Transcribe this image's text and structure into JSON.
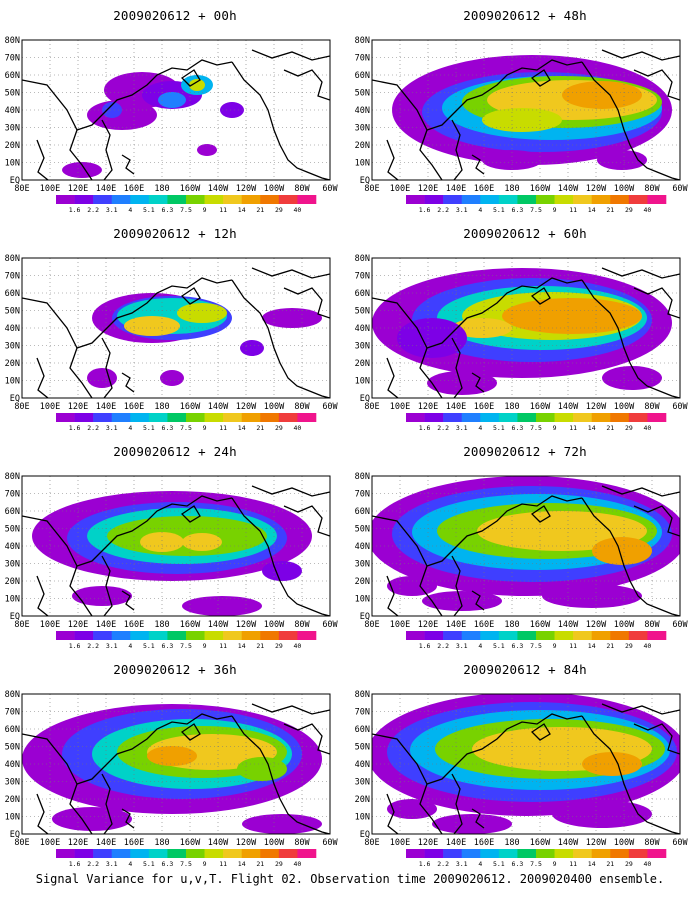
{
  "footer": "Signal Variance for u,v,T. Flight 02. Observation time 2009020612. 2009020400 ensemble.",
  "x_ticks": [
    "80E",
    "100E",
    "120E",
    "140E",
    "160E",
    "180",
    "160W",
    "140W",
    "120W",
    "100W",
    "80W",
    "60W"
  ],
  "y_ticks": [
    "EQ",
    "10N",
    "20N",
    "30N",
    "40N",
    "50N",
    "60N",
    "70N",
    "80N"
  ],
  "colorbar": {
    "labels": [
      "1.6",
      "2.2",
      "3.1",
      "4",
      "5.1",
      "6.3",
      "7.5",
      "9",
      "11",
      "14",
      "21",
      "29",
      "40"
    ],
    "colors": [
      "#9b00d2",
      "#7d00e6",
      "#3f3fff",
      "#1f7fff",
      "#00b4f0",
      "#00d2c8",
      "#00c864",
      "#78d200",
      "#c8dc00",
      "#f0c81e",
      "#f0a000",
      "#f07800",
      "#f03c3c",
      "#f0148c"
    ]
  },
  "panels": [
    {
      "title": "2009020612 + 00h"
    },
    {
      "title": "2009020612 + 48h"
    },
    {
      "title": "2009020612 + 12h"
    },
    {
      "title": "2009020612 + 60h"
    },
    {
      "title": "2009020612 + 24h"
    },
    {
      "title": "2009020612 + 72h"
    },
    {
      "title": "2009020612 + 36h"
    },
    {
      "title": "2009020612 + 84h"
    }
  ]
}
